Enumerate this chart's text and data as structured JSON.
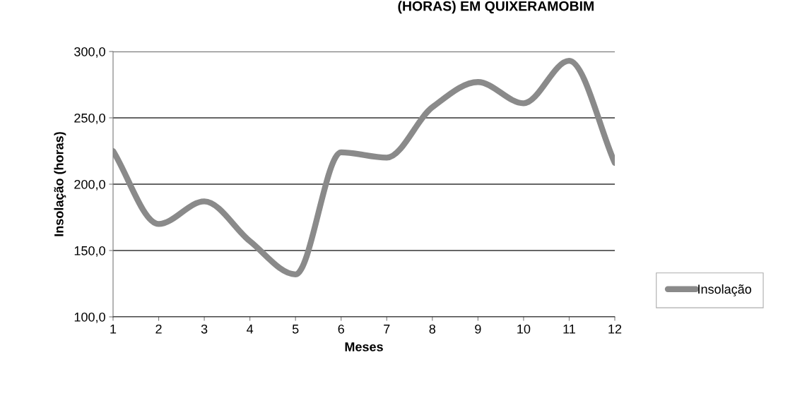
{
  "chart_data": {
    "type": "line",
    "title": "(HORAS) EM QUIXERAMOBIM",
    "xlabel": "Meses",
    "ylabel": "Insolação (horas)",
    "x": [
      1,
      2,
      3,
      4,
      5,
      6,
      7,
      8,
      9,
      10,
      11,
      12
    ],
    "series": [
      {
        "name": "Insolação",
        "color": "#8a8a8a",
        "values": [
          225,
          170,
          187,
          157,
          132,
          224,
          220,
          258,
          277,
          261,
          293,
          216
        ]
      }
    ],
    "xlim": [
      1,
      12
    ],
    "xticks": [
      1,
      2,
      3,
      4,
      5,
      6,
      7,
      8,
      9,
      10,
      11,
      12
    ],
    "ylim": [
      100,
      300
    ],
    "yticks": [
      {
        "value": 100,
        "label": "100,0"
      },
      {
        "value": 150,
        "label": "150,0"
      },
      {
        "value": 200,
        "label": "200,0"
      },
      {
        "value": 250,
        "label": "250,0"
      },
      {
        "value": 300,
        "label": "300,0"
      }
    ],
    "grid": "y",
    "legend": "right",
    "marker": "none",
    "line_style": "solid"
  }
}
